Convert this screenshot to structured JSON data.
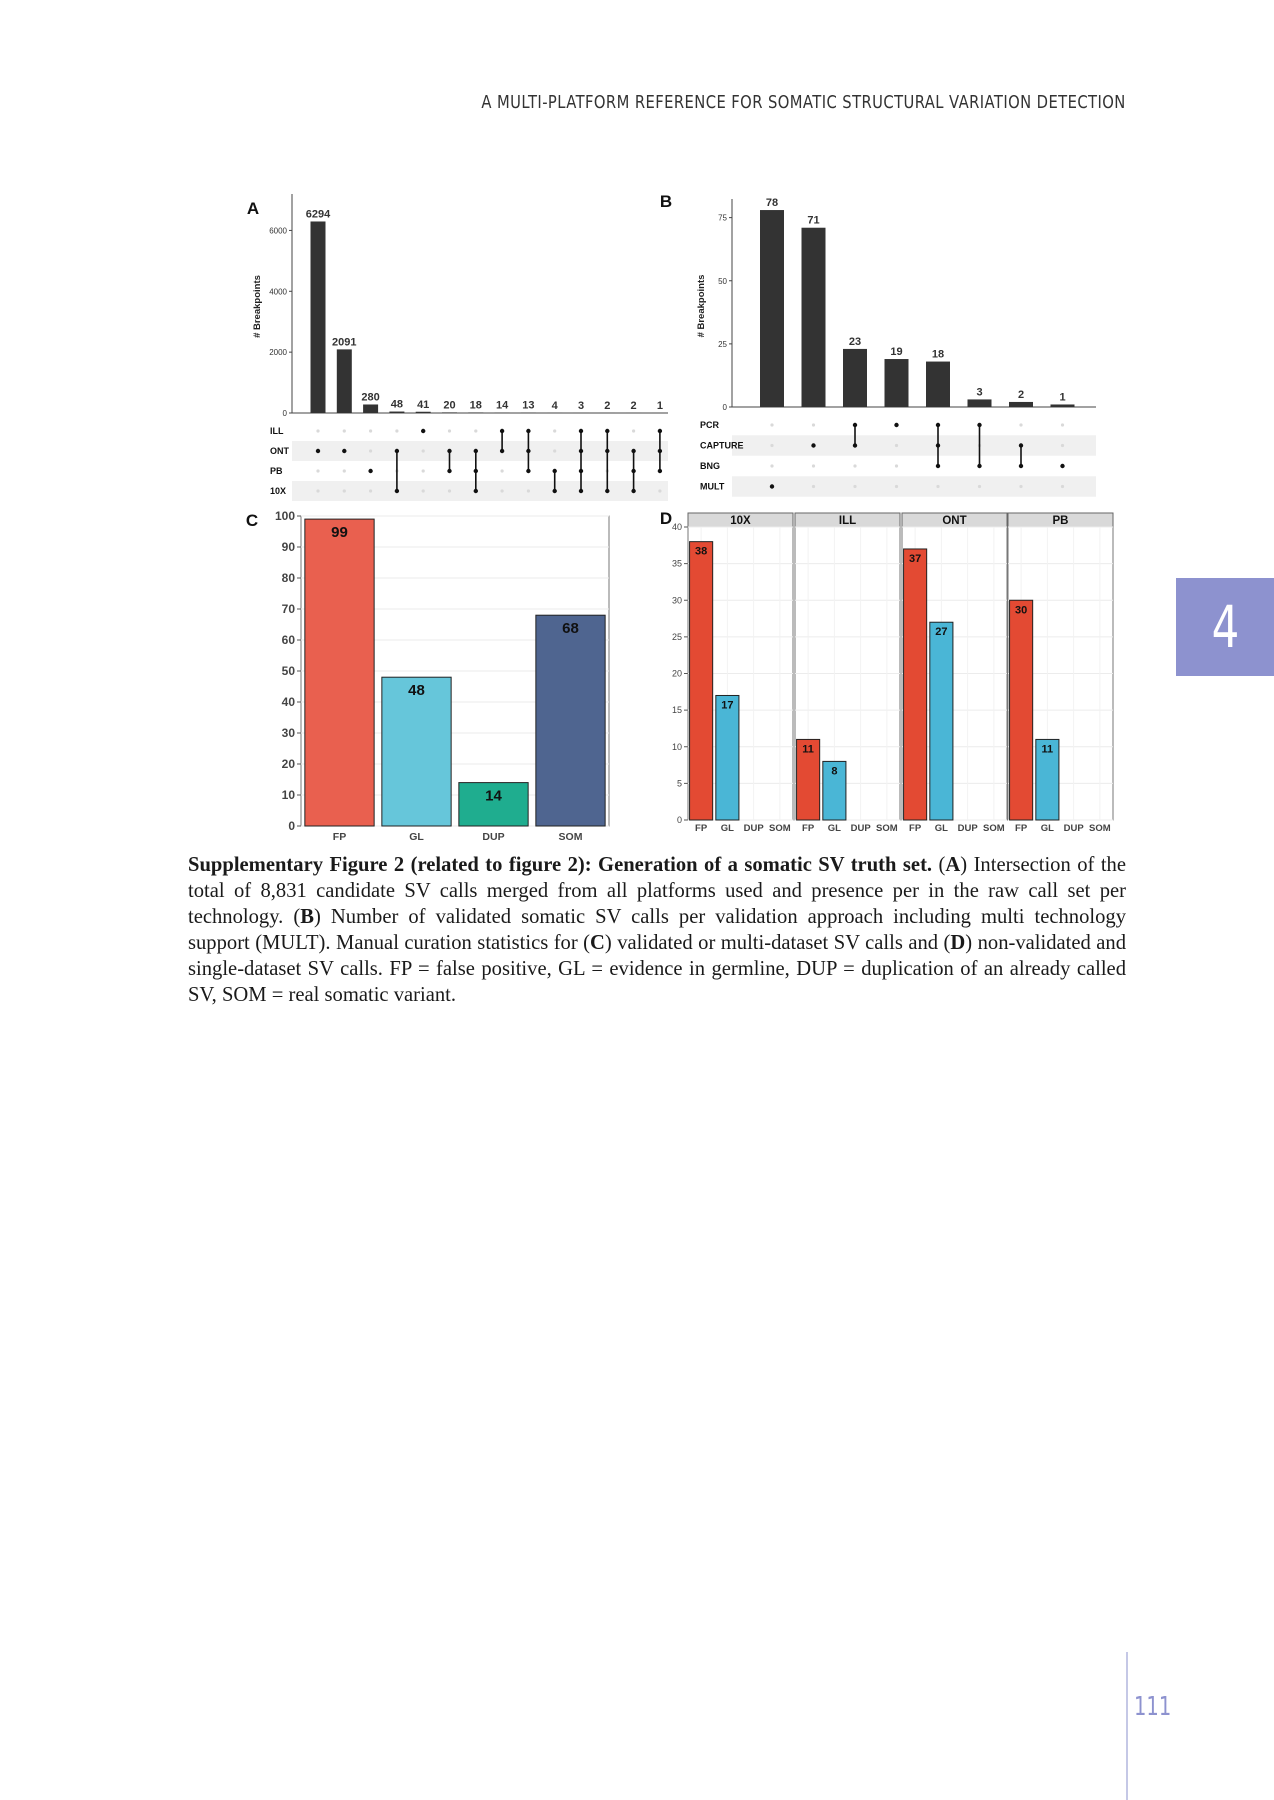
{
  "running_head": "A MULTI-PLATFORM REFERENCE FOR SOMATIC STRUCTURAL VARIATION DETECTION",
  "chapter_tab": "4",
  "page_number": "111",
  "caption": {
    "title": "Supplementary Figure 2 (related to figure 2): Generation of a somatic SV truth set.",
    "parts": [
      {
        "t": " (",
        "b": false
      },
      {
        "t": "A",
        "b": true
      },
      {
        "t": ") Intersection of the total of 8,831 candidate SV calls merged from all platforms used and presence per in the raw call set per technology. (",
        "b": false
      },
      {
        "t": "B",
        "b": true
      },
      {
        "t": ") Number of validated somatic SV calls per validation approach including multi technology support (MULT). Manual curation statistics for (",
        "b": false
      },
      {
        "t": "C",
        "b": true
      },
      {
        "t": ") validated or multi-dataset SV calls and (",
        "b": false
      },
      {
        "t": "D",
        "b": true
      },
      {
        "t": ") non-validated and single-dataset SV calls. FP = false positive, GL = evidence in germline, DUP = duplication of an already called SV, SOM = real somatic variant.",
        "b": false
      }
    ]
  },
  "chart_data": [
    {
      "panel": "A",
      "type": "bar",
      "subtype": "upset",
      "ylabel": "# Breakpoints",
      "ylim": [
        0,
        7000
      ],
      "yticks": [
        0,
        2000,
        4000,
        6000
      ],
      "values": [
        6294,
        2091,
        280,
        48,
        41,
        20,
        18,
        14,
        13,
        4,
        3,
        2,
        2,
        1
      ],
      "sets": [
        "ILL",
        "ONT",
        "PB",
        "10X"
      ],
      "matrix": [
        [
          1
        ],
        [
          1
        ],
        [
          2
        ],
        [
          1,
          3
        ],
        [
          0
        ],
        [
          1,
          2
        ],
        [
          1,
          2,
          3
        ],
        [
          0,
          1
        ],
        [
          0,
          1,
          2
        ],
        [
          2,
          3
        ],
        [
          0,
          1,
          2,
          3
        ],
        [
          0,
          1,
          3
        ],
        [
          1,
          2,
          3
        ],
        [
          0,
          1,
          2
        ]
      ],
      "bar_color": "#333333"
    },
    {
      "panel": "B",
      "type": "bar",
      "subtype": "upset",
      "ylabel": "# Breakpoints",
      "ylim": [
        0,
        80
      ],
      "yticks": [
        0,
        25,
        50,
        75
      ],
      "values": [
        78,
        71,
        23,
        19,
        18,
        3,
        2,
        1
      ],
      "sets": [
        "PCR",
        "CAPTURE",
        "BNG",
        "MULT"
      ],
      "matrix": [
        [
          3
        ],
        [
          1
        ],
        [
          0,
          1
        ],
        [
          0
        ],
        [
          0,
          1,
          2
        ],
        [
          0,
          2
        ],
        [
          1,
          2
        ],
        [
          2
        ]
      ],
      "bar_color": "#333333"
    },
    {
      "panel": "C",
      "type": "bar",
      "categories": [
        "FP",
        "GL",
        "DUP",
        "SOM"
      ],
      "values": [
        99,
        48,
        14,
        68
      ],
      "ylim": [
        0,
        100
      ],
      "yticks": [
        0,
        10,
        20,
        30,
        40,
        50,
        60,
        70,
        80,
        90,
        100
      ],
      "colors": [
        "#e9604f",
        "#66c6da",
        "#1fad8f",
        "#4f6590"
      ]
    },
    {
      "panel": "D",
      "type": "bar",
      "facets": [
        "10X",
        "ILL",
        "ONT",
        "PB"
      ],
      "categories": [
        "FP",
        "GL",
        "DUP",
        "SOM"
      ],
      "series": [
        {
          "facet": "10X",
          "values": [
            38,
            17,
            0,
            0
          ]
        },
        {
          "facet": "ILL",
          "values": [
            11,
            8,
            0,
            0
          ]
        },
        {
          "facet": "ONT",
          "values": [
            37,
            27,
            0,
            0
          ]
        },
        {
          "facet": "PB",
          "values": [
            30,
            11,
            0,
            0
          ]
        }
      ],
      "ylim": [
        0,
        40
      ],
      "yticks": [
        0,
        5,
        10,
        15,
        20,
        25,
        30,
        35,
        40
      ],
      "colors": [
        "#e34a33",
        "#4ab6d6"
      ]
    }
  ]
}
